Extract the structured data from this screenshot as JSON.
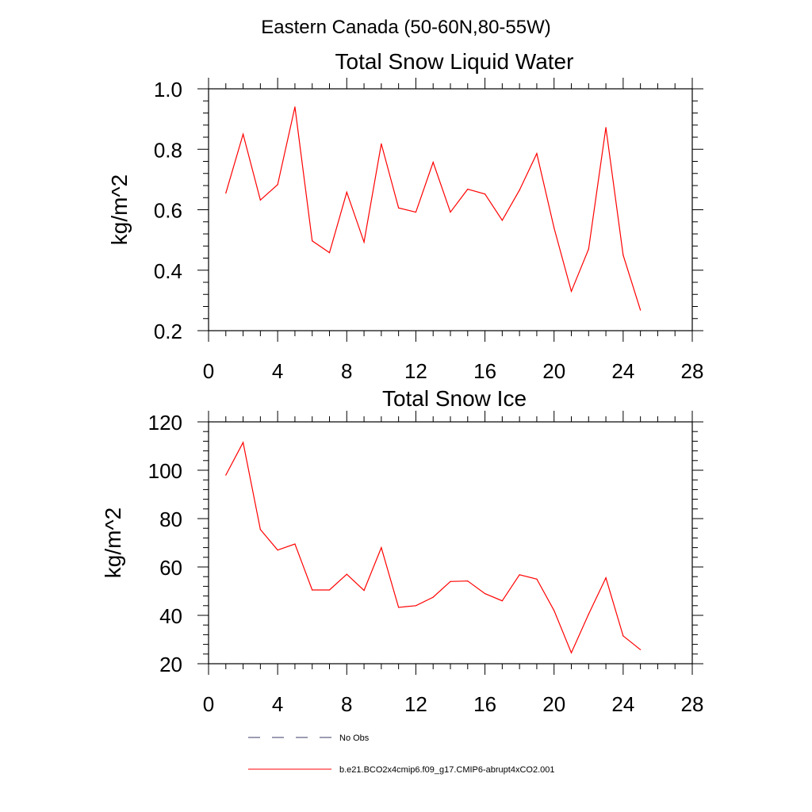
{
  "figure": {
    "suptitle": "Eastern Canada (50-60N,80-55W)"
  },
  "legend": {
    "entries": [
      {
        "label": "No Obs",
        "style": "dashed",
        "color": "#3a3a6a"
      },
      {
        "label": "b.e21.BCO2x4cmip6.f09_g17.CMIP6-abrupt4xCO2.001",
        "style": "solid",
        "color": "#ff0000"
      }
    ]
  },
  "chart_data": [
    {
      "type": "line",
      "title": "Total Snow Liquid Water",
      "xlabel": "",
      "ylabel": "kg/m^2",
      "xlim": [
        0,
        28
      ],
      "ylim": [
        0.2,
        1.0
      ],
      "xticks": [
        0,
        4,
        8,
        12,
        16,
        20,
        24,
        28
      ],
      "xtick_labels": [
        "0",
        "4",
        "8",
        "12",
        "16",
        "20",
        "24",
        "28"
      ],
      "yticks": [
        0.2,
        0.4,
        0.6,
        0.8,
        1.0
      ],
      "ytick_labels": [
        "0.2",
        "0.4",
        "0.6",
        "0.8",
        "1.0"
      ],
      "grid": false,
      "series": [
        {
          "color": "#ff0000",
          "x": [
            1,
            2,
            3,
            4,
            5,
            6,
            7,
            8,
            9,
            10,
            11,
            12,
            13,
            14,
            15,
            16,
            17,
            18,
            19,
            20,
            21,
            22,
            23,
            24,
            25
          ],
          "y": [
            0.655,
            0.85,
            0.632,
            0.683,
            0.94,
            0.497,
            0.458,
            0.658,
            0.493,
            0.818,
            0.606,
            0.592,
            0.757,
            0.592,
            0.668,
            0.652,
            0.565,
            0.665,
            0.786,
            0.54,
            0.33,
            0.47,
            0.872,
            0.45,
            0.268
          ]
        }
      ]
    },
    {
      "type": "line",
      "title": "Total Snow Ice",
      "xlabel": "",
      "ylabel": "kg/m^2",
      "xlim": [
        0,
        28
      ],
      "ylim": [
        20,
        120
      ],
      "xticks": [
        0,
        4,
        8,
        12,
        16,
        20,
        24,
        28
      ],
      "xtick_labels": [
        "0",
        "4",
        "8",
        "12",
        "16",
        "20",
        "24",
        "28"
      ],
      "yticks": [
        20,
        40,
        60,
        80,
        100,
        120
      ],
      "ytick_labels": [
        "20",
        "40",
        "60",
        "80",
        "100",
        "120"
      ],
      "grid": false,
      "series": [
        {
          "color": "#ff0000",
          "x": [
            1,
            2,
            3,
            4,
            5,
            6,
            7,
            8,
            9,
            10,
            11,
            12,
            13,
            14,
            15,
            16,
            17,
            18,
            19,
            20,
            21,
            22,
            23,
            24,
            25
          ],
          "y": [
            98,
            111.5,
            75.5,
            67,
            69.5,
            50.5,
            50.5,
            57,
            50.3,
            68,
            43.3,
            44,
            47.5,
            54,
            54.2,
            49,
            46,
            56.8,
            55,
            42,
            24.5,
            40.5,
            55.5,
            31.5,
            25.8
          ]
        }
      ]
    }
  ]
}
